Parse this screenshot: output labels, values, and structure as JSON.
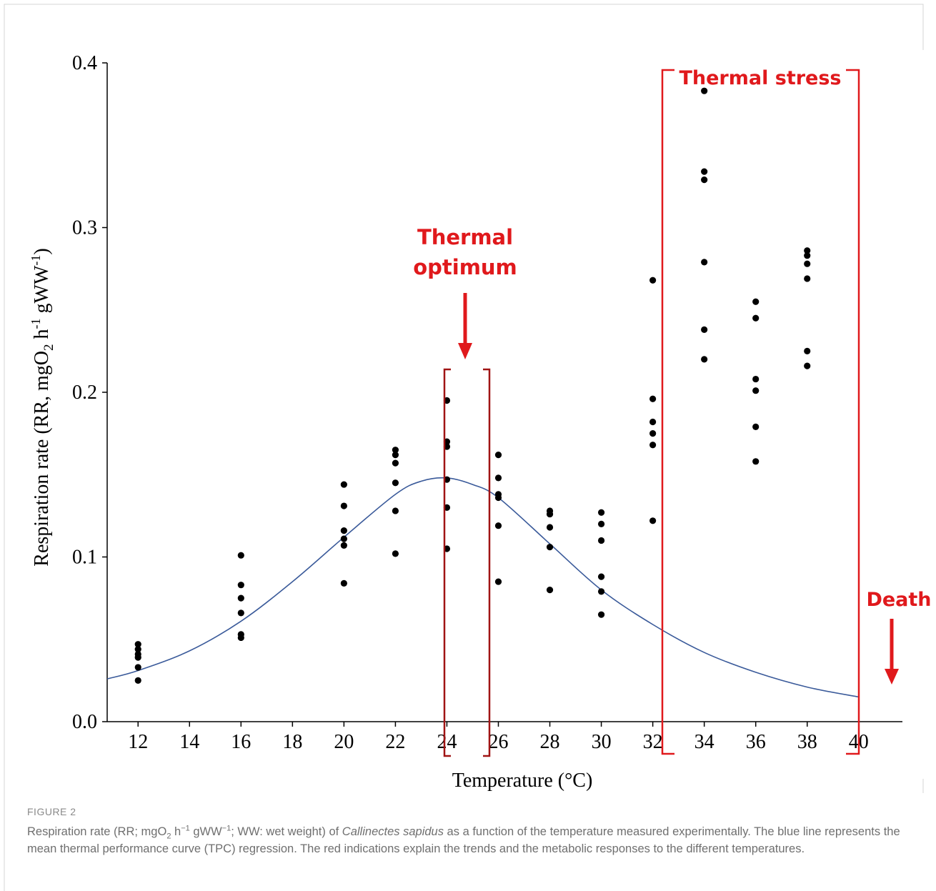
{
  "colors": {
    "points": "#000000",
    "curve": "#3a5a9a",
    "annotation": "#e0191c",
    "optimum_box": "#a01414",
    "caption_text": "#6f6f6f"
  },
  "chart_data": {
    "type": "scatter",
    "xlabel": "Temperature (°C)",
    "ylabel": "Respiration rate (RR, mgO2 h-1 gWW-1)",
    "ylabel_parts": {
      "a": "Respiration rate (RR, mgO",
      "b": "2",
      "c": " h",
      "d": "-1",
      "e": " gWW",
      "f": "-1",
      "g": ")"
    },
    "xlim": [
      10.8,
      41.7
    ],
    "ylim": [
      0,
      0.4
    ],
    "xticks": [
      12,
      14,
      16,
      18,
      20,
      22,
      24,
      26,
      28,
      30,
      32,
      34,
      36,
      38,
      40
    ],
    "yticks": [
      0.0,
      0.1,
      0.2,
      0.3,
      0.4
    ],
    "ytick_labels": [
      "0.0",
      "0.1",
      "0.2",
      "0.3",
      "0.4"
    ],
    "grid": false,
    "series": [
      {
        "points": [
          [
            12,
            0.047
          ],
          [
            12,
            0.044
          ],
          [
            12,
            0.041
          ],
          [
            12,
            0.039
          ],
          [
            12,
            0.033
          ],
          [
            12,
            0.025
          ],
          [
            16,
            0.101
          ],
          [
            16,
            0.083
          ],
          [
            16,
            0.075
          ],
          [
            16,
            0.066
          ],
          [
            16,
            0.053
          ],
          [
            16,
            0.051
          ],
          [
            20,
            0.144
          ],
          [
            20,
            0.131
          ],
          [
            20,
            0.116
          ],
          [
            20,
            0.111
          ],
          [
            20,
            0.107
          ],
          [
            20,
            0.084
          ],
          [
            22,
            0.165
          ],
          [
            22,
            0.162
          ],
          [
            22,
            0.157
          ],
          [
            22,
            0.145
          ],
          [
            22,
            0.128
          ],
          [
            22,
            0.102
          ],
          [
            24,
            0.195
          ],
          [
            24,
            0.17
          ],
          [
            24,
            0.167
          ],
          [
            24,
            0.147
          ],
          [
            24,
            0.13
          ],
          [
            24,
            0.105
          ],
          [
            26,
            0.162
          ],
          [
            26,
            0.148
          ],
          [
            26,
            0.138
          ],
          [
            26,
            0.136
          ],
          [
            26,
            0.119
          ],
          [
            26,
            0.085
          ],
          [
            28,
            0.128
          ],
          [
            28,
            0.126
          ],
          [
            28,
            0.118
          ],
          [
            28,
            0.106
          ],
          [
            28,
            0.08
          ],
          [
            30,
            0.127
          ],
          [
            30,
            0.12
          ],
          [
            30,
            0.11
          ],
          [
            30,
            0.088
          ],
          [
            30,
            0.079
          ],
          [
            30,
            0.065
          ],
          [
            32,
            0.268
          ],
          [
            32,
            0.196
          ],
          [
            32,
            0.182
          ],
          [
            32,
            0.175
          ],
          [
            32,
            0.168
          ],
          [
            32,
            0.122
          ],
          [
            34,
            0.383
          ],
          [
            34,
            0.334
          ],
          [
            34,
            0.329
          ],
          [
            34,
            0.279
          ],
          [
            34,
            0.238
          ],
          [
            34,
            0.22
          ],
          [
            36,
            0.255
          ],
          [
            36,
            0.245
          ],
          [
            36,
            0.208
          ],
          [
            36,
            0.201
          ],
          [
            36,
            0.179
          ],
          [
            36,
            0.158
          ],
          [
            38,
            0.286
          ],
          [
            38,
            0.283
          ],
          [
            38,
            0.278
          ],
          [
            38,
            0.269
          ],
          [
            38,
            0.225
          ],
          [
            38,
            0.216
          ]
        ]
      },
      {
        "type": "line",
        "x": [
          10.8,
          12,
          14,
          16,
          18,
          20,
          22,
          23,
          24,
          25,
          26,
          28,
          30,
          32,
          34,
          36,
          38,
          40
        ],
        "y": [
          0.026,
          0.031,
          0.043,
          0.061,
          0.085,
          0.112,
          0.138,
          0.146,
          0.148,
          0.144,
          0.136,
          0.108,
          0.08,
          0.059,
          0.042,
          0.03,
          0.021,
          0.015
        ]
      }
    ],
    "annotations": {
      "optimum_line1": "Thermal",
      "optimum_line2": "optimum",
      "stress": "Thermal stress",
      "death": "Death"
    }
  },
  "caption": {
    "label": "FIGURE 2",
    "p1": "Respiration rate (RR; mgO",
    "sub2": "2",
    "p2": " h",
    "sup1": "−1",
    "p3": " gWW",
    "sup2": "−1",
    "p4": "; WW: wet weight) of ",
    "species": "Callinectes sapidus",
    "p5": " as a function of the temperature measured experimentally. The blue line represents the mean thermal performance curve (TPC) regression. The red indications explain the trends and the metabolic responses to the different temperatures."
  }
}
